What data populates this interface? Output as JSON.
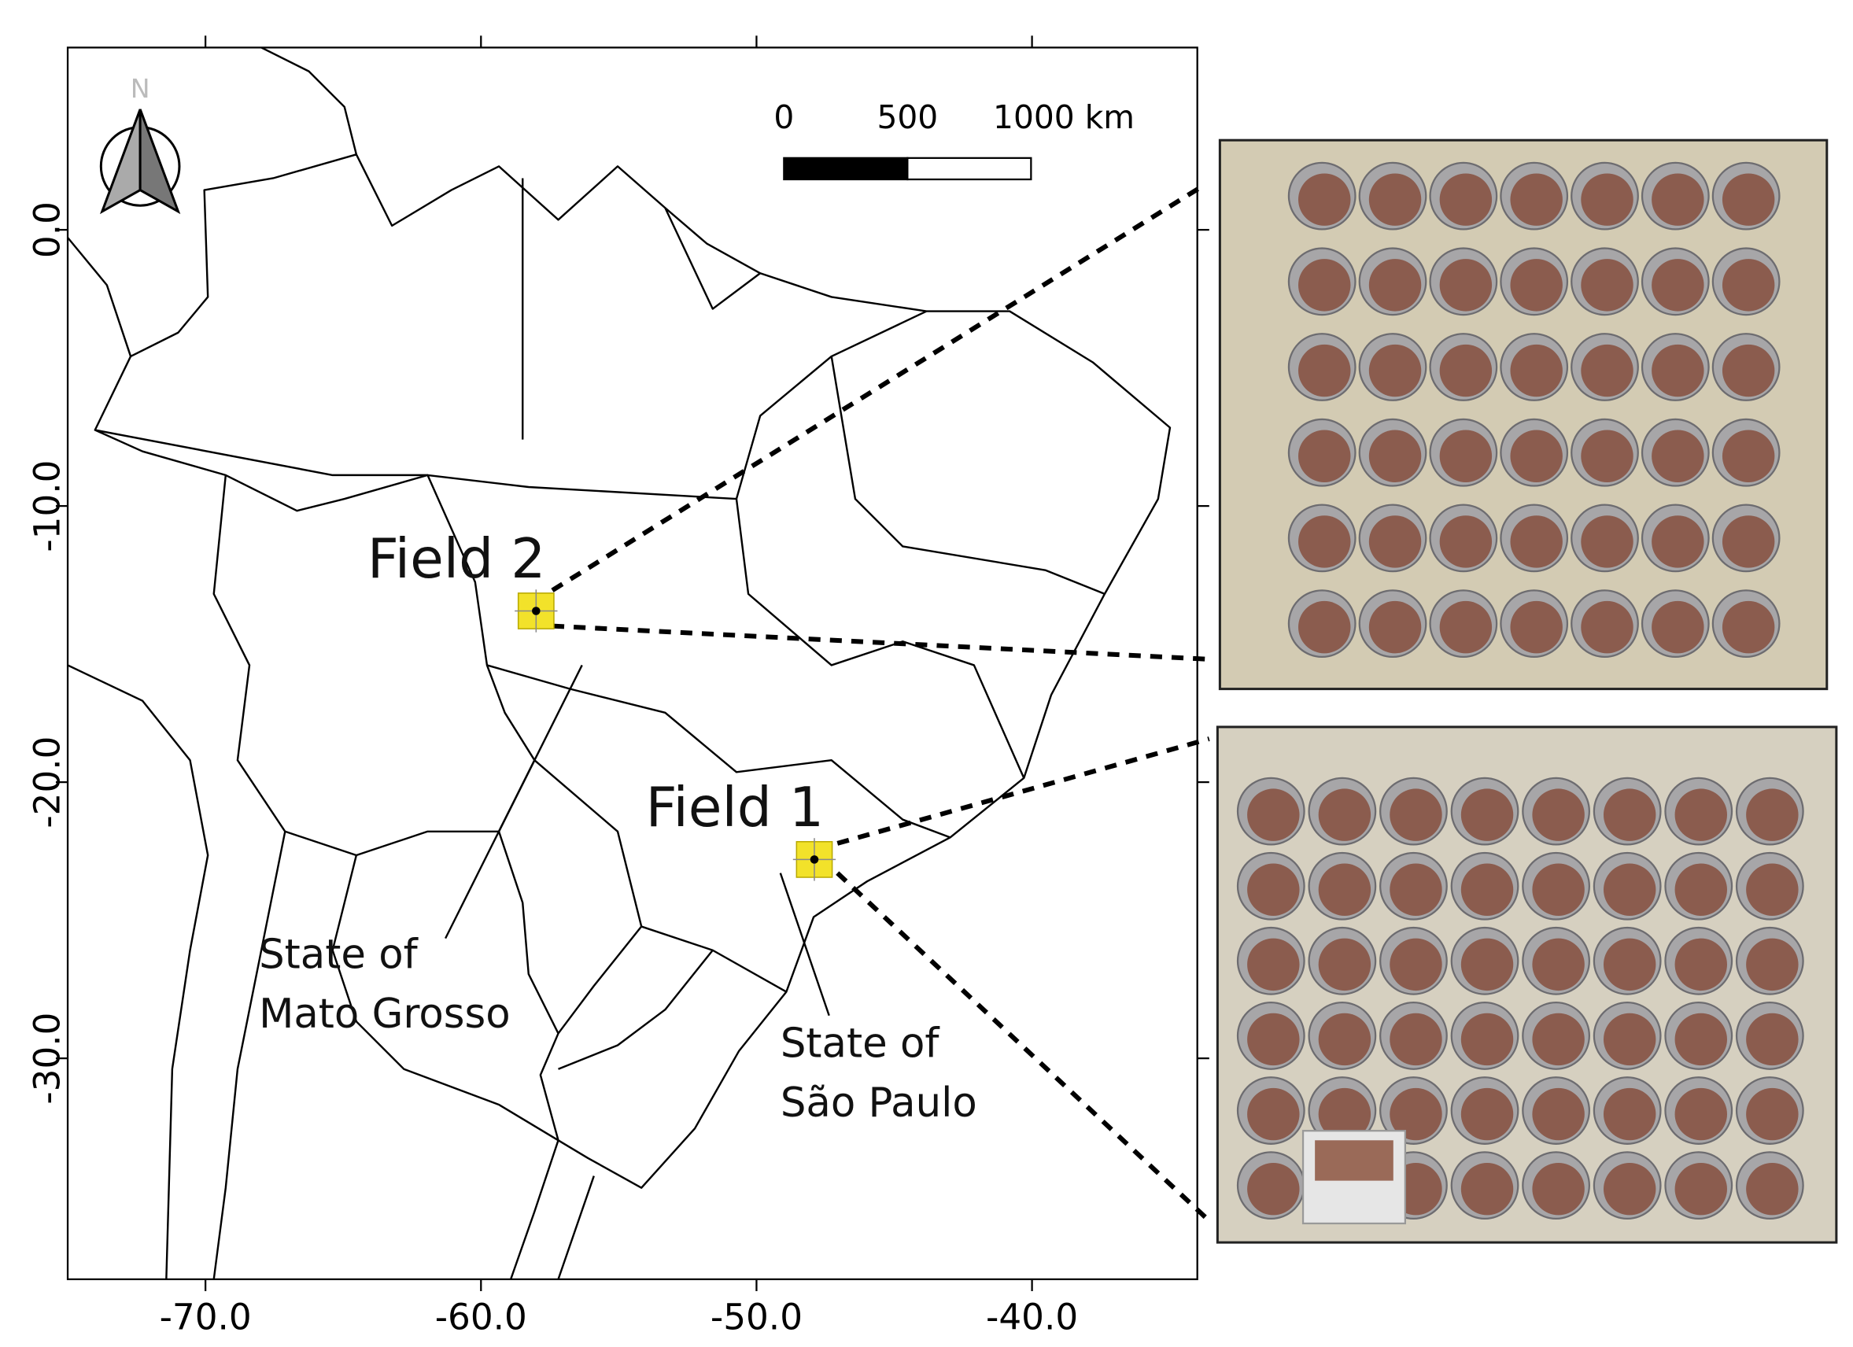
{
  "map": {
    "xlim": [
      -75,
      -34
    ],
    "ylim": [
      -38,
      6.6
    ],
    "xticks": [
      {
        "value": -70,
        "label": "-70.0"
      },
      {
        "value": -60,
        "label": "-60.0"
      },
      {
        "value": -50,
        "label": "-50.0"
      },
      {
        "value": -40,
        "label": "-40.0"
      }
    ],
    "yticks": [
      {
        "value": 0,
        "label": "0.0"
      },
      {
        "value": -10,
        "label": "-10.0"
      },
      {
        "value": -20,
        "label": "-20.0"
      },
      {
        "value": -30,
        "label": "-30.0"
      }
    ],
    "north_label": "N",
    "scale_bar": {
      "ticks": [
        0,
        500,
        {
          "value": 1000,
          "label": "1000 km"
        }
      ]
    },
    "fields": [
      {
        "label": "Field 2",
        "lon": -58,
        "lat": -13.8
      },
      {
        "label": "Field 1",
        "lon": -47.9,
        "lat": -22.8
      }
    ],
    "state_labels": [
      [
        "State of",
        "Mato Grosso"
      ],
      [
        "State of",
        "São Paulo"
      ]
    ]
  }
}
